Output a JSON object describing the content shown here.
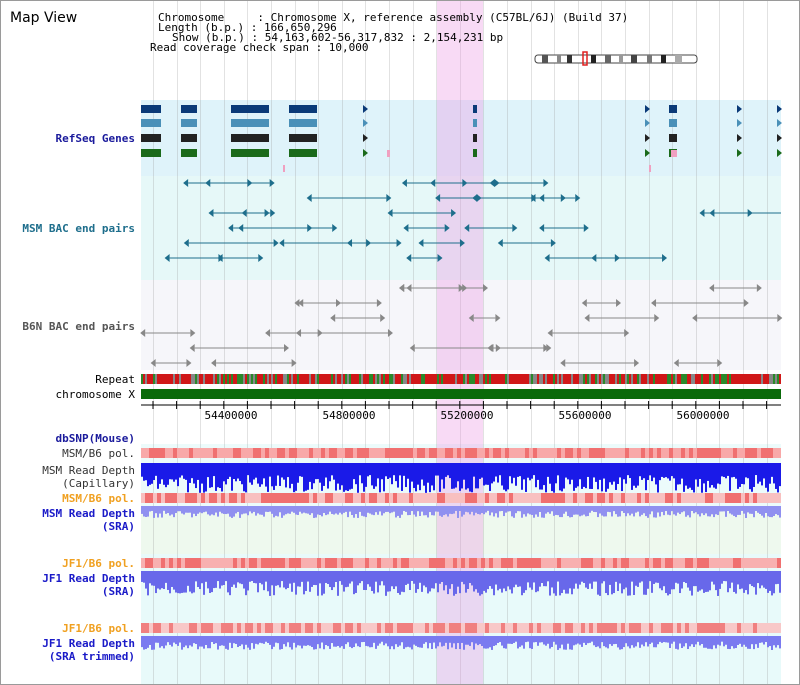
{
  "title": "Map View",
  "info": {
    "chromosome": "Chromosome     : Chromosome X, reference assembly (C57BL/6J) (Build 37)",
    "length": "Length (b.p.) : 166,650,296",
    "show": "Show (b.p.) : 54,163,602-56,317,832 : 2,154,231 bp",
    "coverage": "Read coverage check span : 10,000"
  },
  "tracks": {
    "refseq": "RefSeq Genes",
    "msm_bac": "MSM BAC end pairs",
    "b6n_bac": "B6N BAC end pairs",
    "repeat": "Repeat",
    "chromosome": "chromosome X",
    "dbsnp": "dbSNP(Mouse)",
    "msm_b6_pol_1": "MSM/B6 pol.",
    "msm_depth_cap_1": "MSM Read Depth",
    "msm_depth_cap_2": "(Capillary)",
    "msm_b6_pol_2": "MSM/B6 pol.",
    "msm_depth_sra_1": "MSM Read Depth",
    "msm_depth_sra_2": "(SRA)",
    "jf1_b6_pol_1": "JF1/B6 pol.",
    "jf1_depth_sra_1": "JF1 Read Depth",
    "jf1_depth_sra_2": "(SRA)",
    "jf1_b6_pol_2": "JF1/B6 pol.",
    "jf1_depth_trim_1": "JF1 Read Depth",
    "jf1_depth_trim_2": "(SRA trimmed)"
  },
  "axis": {
    "ticks": [
      "54400000",
      "54800000",
      "55200000",
      "55600000",
      "56000000"
    ]
  },
  "colors": {
    "refseq_label": "#1a1a9c",
    "msm_label": "#1e6e8c",
    "b6n_label": "#666666",
    "pol_orange": "#f0a020",
    "depth_blue": "#1a1ac8",
    "highlight": "#f5c8f0"
  }
}
